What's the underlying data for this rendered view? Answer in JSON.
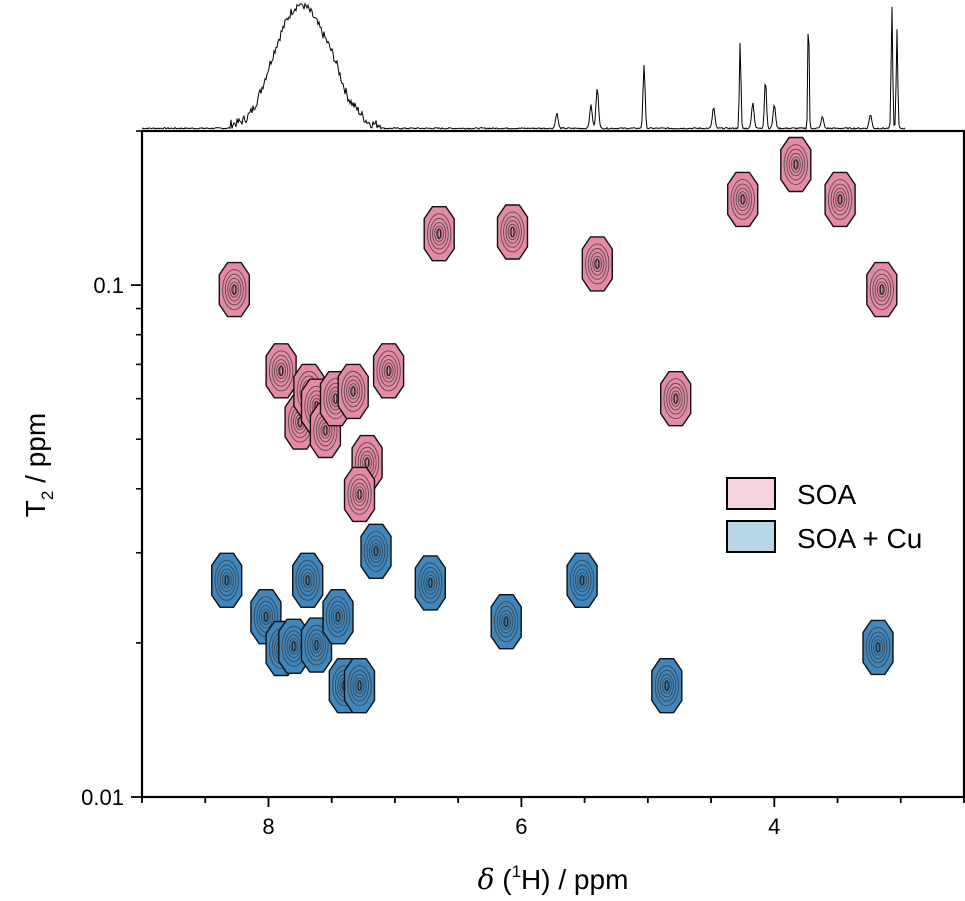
{
  "chart_data": {
    "type": "contour",
    "xlabel": {
      "prefix": "δ",
      "open": " (",
      "superscript": "1",
      "nucleus": "H",
      "rest": ") / ppm"
    },
    "ylabel": {
      "main": "T",
      "subscript": "2",
      "rest": " / ppm"
    },
    "x_range": [
      9.0,
      2.5
    ],
    "y_range": [
      0.01,
      0.2
    ],
    "y_scale": "log",
    "x_ticks": [
      {
        "value": 8,
        "label": "8"
      },
      {
        "value": 6,
        "label": "6"
      },
      {
        "value": 4,
        "label": "4"
      }
    ],
    "y_ticks": [
      {
        "value": 0.1,
        "label": "0.1"
      },
      {
        "value": 0.01,
        "label": "0.01"
      }
    ],
    "legend_position": "right",
    "series": [
      {
        "name": "SOA",
        "fill": "#e48aa5",
        "legend_fill": "#f6d3de",
        "peaks": [
          {
            "x": 8.27,
            "y": 0.098
          },
          {
            "x": 7.9,
            "y": 0.068
          },
          {
            "x": 7.75,
            "y": 0.054
          },
          {
            "x": 7.68,
            "y": 0.062
          },
          {
            "x": 7.62,
            "y": 0.058
          },
          {
            "x": 7.55,
            "y": 0.052
          },
          {
            "x": 7.47,
            "y": 0.06
          },
          {
            "x": 7.33,
            "y": 0.062
          },
          {
            "x": 7.22,
            "y": 0.045
          },
          {
            "x": 7.28,
            "y": 0.039
          },
          {
            "x": 7.05,
            "y": 0.068
          },
          {
            "x": 6.65,
            "y": 0.126
          },
          {
            "x": 6.07,
            "y": 0.127
          },
          {
            "x": 5.4,
            "y": 0.11
          },
          {
            "x": 4.78,
            "y": 0.06
          },
          {
            "x": 4.25,
            "y": 0.147
          },
          {
            "x": 3.83,
            "y": 0.172
          },
          {
            "x": 3.48,
            "y": 0.147
          },
          {
            "x": 3.15,
            "y": 0.098
          }
        ]
      },
      {
        "name": "SOA + Cu",
        "fill": "#3f86bd",
        "legend_fill": "#b9d5e8",
        "peaks": [
          {
            "x": 8.33,
            "y": 0.0265
          },
          {
            "x": 8.02,
            "y": 0.0225
          },
          {
            "x": 7.9,
            "y": 0.0195
          },
          {
            "x": 7.8,
            "y": 0.0197
          },
          {
            "x": 7.69,
            "y": 0.0265
          },
          {
            "x": 7.62,
            "y": 0.0198
          },
          {
            "x": 7.45,
            "y": 0.0225
          },
          {
            "x": 7.4,
            "y": 0.0165
          },
          {
            "x": 7.28,
            "y": 0.0165
          },
          {
            "x": 7.15,
            "y": 0.0302
          },
          {
            "x": 6.72,
            "y": 0.0262
          },
          {
            "x": 6.12,
            "y": 0.022
          },
          {
            "x": 5.52,
            "y": 0.0265
          },
          {
            "x": 4.85,
            "y": 0.0165
          },
          {
            "x": 3.18,
            "y": 0.0196
          }
        ]
      }
    ],
    "projection_1d": {
      "description_free": true,
      "peaks": [
        {
          "x": 7.95,
          "h": 0.45,
          "w": 0.11
        },
        {
          "x": 7.8,
          "h": 0.55,
          "w": 0.1
        },
        {
          "x": 7.68,
          "h": 0.52,
          "w": 0.1
        },
        {
          "x": 7.55,
          "h": 0.4,
          "w": 0.1
        },
        {
          "x": 7.45,
          "h": 0.2,
          "w": 0.08
        },
        {
          "x": 7.3,
          "h": 0.08,
          "w": 0.05
        },
        {
          "x": 5.72,
          "h": 0.13,
          "w": 0.01
        },
        {
          "x": 5.45,
          "h": 0.2,
          "w": 0.01
        },
        {
          "x": 5.4,
          "h": 0.35,
          "w": 0.01
        },
        {
          "x": 5.03,
          "h": 0.55,
          "w": 0.008
        },
        {
          "x": 4.48,
          "h": 0.18,
          "w": 0.01
        },
        {
          "x": 4.27,
          "h": 0.75,
          "w": 0.006
        },
        {
          "x": 4.17,
          "h": 0.22,
          "w": 0.01
        },
        {
          "x": 4.07,
          "h": 0.42,
          "w": 0.008
        },
        {
          "x": 4.0,
          "h": 0.2,
          "w": 0.01
        },
        {
          "x": 3.73,
          "h": 1.05,
          "w": 0.005
        },
        {
          "x": 3.62,
          "h": 0.1,
          "w": 0.01
        },
        {
          "x": 3.24,
          "h": 0.12,
          "w": 0.01
        },
        {
          "x": 3.07,
          "h": 1.05,
          "w": 0.006
        },
        {
          "x": 3.03,
          "h": 0.85,
          "w": 0.006
        }
      ]
    }
  }
}
